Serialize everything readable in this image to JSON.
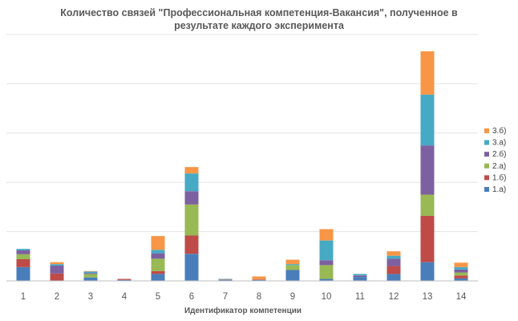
{
  "chart_data": {
    "type": "bar",
    "stacked": true,
    "title_line1": "Количество связей \"Профессиональная компетенция-Вакансия\", полученное в",
    "title_line2": "результате каждого эксперимента",
    "xlabel": "Идентификатор компетенции",
    "ylabel": "",
    "ylim": [
      0,
      5
    ],
    "grid": true,
    "legend_position": "right",
    "categories": [
      "1",
      "2",
      "3",
      "4",
      "5",
      "6",
      "7",
      "8",
      "9",
      "10",
      "11",
      "12",
      "13",
      "14"
    ],
    "series": [
      {
        "name": "1.а)",
        "color": "#4a7ebb",
        "values": [
          0.28,
          0.0,
          0.07,
          0.02,
          0.14,
          0.55,
          0.02,
          0.02,
          0.22,
          0.04,
          0.08,
          0.14,
          0.38,
          0.05
        ]
      },
      {
        "name": "1.б)",
        "color": "#be4b48",
        "values": [
          0.16,
          0.15,
          0.0,
          0.02,
          0.06,
          0.37,
          0.01,
          0.01,
          0.0,
          0.0,
          0.0,
          0.16,
          0.94,
          0.06
        ]
      },
      {
        "name": "2.а)",
        "color": "#98b954",
        "values": [
          0.1,
          0.0,
          0.07,
          0.0,
          0.25,
          0.63,
          0.0,
          0.0,
          0.1,
          0.28,
          0.0,
          0.0,
          0.43,
          0.06
        ]
      },
      {
        "name": "2.б)",
        "color": "#7d60a0",
        "values": [
          0.08,
          0.16,
          0.02,
          0.0,
          0.11,
          0.27,
          0.0,
          0.0,
          0.0,
          0.1,
          0.03,
          0.15,
          1.0,
          0.06
        ]
      },
      {
        "name": "3.а)",
        "color": "#46aac5",
        "values": [
          0.03,
          0.03,
          0.03,
          0.0,
          0.07,
          0.36,
          0.01,
          0.0,
          0.02,
          0.4,
          0.03,
          0.06,
          1.03,
          0.05
        ]
      },
      {
        "name": "3.б)",
        "color": "#f79646",
        "values": [
          0.0,
          0.04,
          0.01,
          0.0,
          0.28,
          0.13,
          0.0,
          0.06,
          0.09,
          0.23,
          0.0,
          0.09,
          0.88,
          0.09
        ]
      }
    ]
  }
}
